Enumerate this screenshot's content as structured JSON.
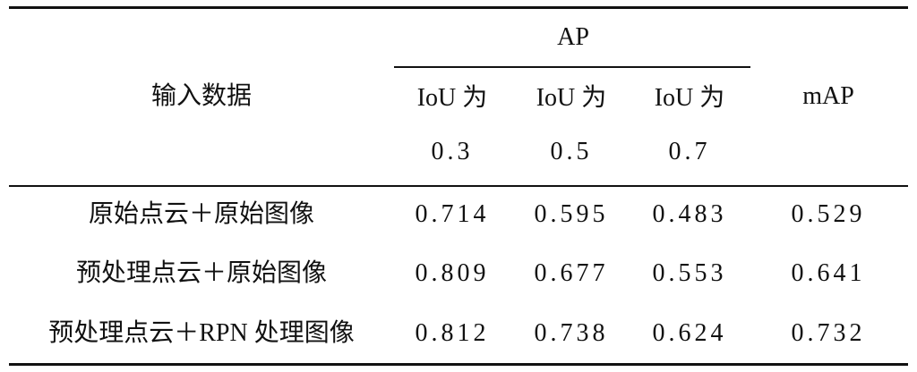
{
  "table": {
    "header": {
      "input": "输入数据",
      "group": "AP",
      "subcolumns": [
        [
          "IoU 为",
          "0.3"
        ],
        [
          "IoU 为",
          "0.5"
        ],
        [
          "IoU 为",
          "0.7"
        ]
      ],
      "map": "mAP"
    },
    "rows": [
      [
        "原始点云＋原始图像",
        "0.714",
        "0.595",
        "0.483",
        "0.529"
      ],
      [
        "预处理点云＋原始图像",
        "0.809",
        "0.677",
        "0.553",
        "0.641"
      ],
      [
        "预处理点云＋RPN 处理图像",
        "0.812",
        "0.738",
        "0.624",
        "0.732"
      ]
    ]
  }
}
